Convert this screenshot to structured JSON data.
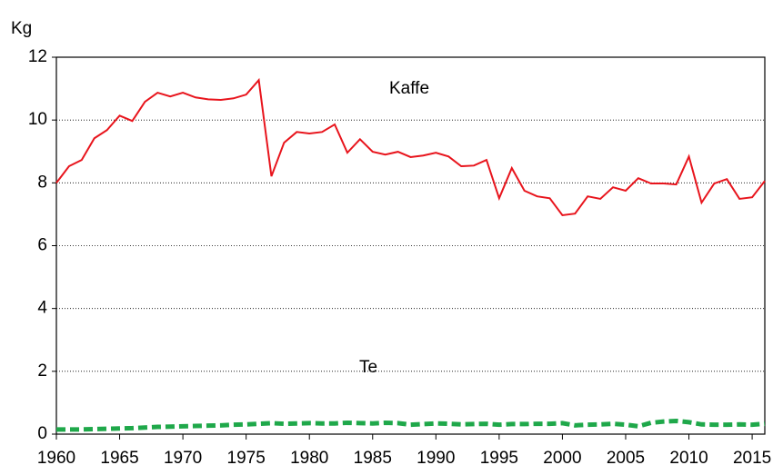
{
  "chart_data": {
    "type": "line",
    "y_label": "Kg",
    "annotations": [
      "Kaffe",
      "Te"
    ],
    "x": [
      1960,
      1961,
      1962,
      1963,
      1964,
      1965,
      1966,
      1967,
      1968,
      1969,
      1970,
      1971,
      1972,
      1973,
      1974,
      1975,
      1976,
      1977,
      1978,
      1979,
      1980,
      1981,
      1982,
      1983,
      1984,
      1985,
      1986,
      1987,
      1988,
      1989,
      1990,
      1991,
      1992,
      1993,
      1994,
      1995,
      1996,
      1997,
      1998,
      1999,
      2000,
      2001,
      2002,
      2003,
      2004,
      2005,
      2006,
      2007,
      2008,
      2009,
      2010,
      2011,
      2012,
      2013,
      2014,
      2015,
      2016
    ],
    "series": [
      {
        "name": "Kaffe",
        "color": "#e8141c",
        "dashed": false,
        "values": [
          8.0,
          8.53,
          8.73,
          9.42,
          9.68,
          10.14,
          9.97,
          10.58,
          10.87,
          10.75,
          10.87,
          10.72,
          10.66,
          10.64,
          10.69,
          10.81,
          11.27,
          8.21,
          9.28,
          9.62,
          9.57,
          9.62,
          9.86,
          8.96,
          9.39,
          8.99,
          8.9,
          8.99,
          8.82,
          8.87,
          8.96,
          8.84,
          8.53,
          8.55,
          8.73,
          7.51,
          8.47,
          7.75,
          7.57,
          7.51,
          6.97,
          7.02,
          7.57,
          7.49,
          7.86,
          7.75,
          8.15,
          7.98,
          7.98,
          7.95,
          8.84,
          7.37,
          7.98,
          8.12,
          7.49,
          7.54,
          8.06
        ]
      },
      {
        "name": "Te",
        "color": "#1fa84a",
        "dashed": true,
        "values": [
          0.15,
          0.15,
          0.15,
          0.16,
          0.17,
          0.18,
          0.19,
          0.21,
          0.23,
          0.24,
          0.25,
          0.26,
          0.27,
          0.28,
          0.3,
          0.31,
          0.33,
          0.35,
          0.33,
          0.34,
          0.35,
          0.34,
          0.34,
          0.36,
          0.35,
          0.34,
          0.36,
          0.35,
          0.3,
          0.32,
          0.34,
          0.33,
          0.31,
          0.32,
          0.33,
          0.3,
          0.32,
          0.32,
          0.33,
          0.33,
          0.35,
          0.28,
          0.3,
          0.31,
          0.33,
          0.3,
          0.25,
          0.36,
          0.4,
          0.42,
          0.38,
          0.31,
          0.3,
          0.3,
          0.31,
          0.3,
          0.33
        ]
      }
    ],
    "xlim": [
      1960,
      2016
    ],
    "xticks": [
      1960,
      1965,
      1970,
      1975,
      1980,
      1985,
      1990,
      1995,
      2000,
      2005,
      2010,
      2015
    ],
    "ylim": [
      0,
      12
    ],
    "yticks": [
      0,
      2,
      4,
      6,
      8,
      10,
      12
    ],
    "grid": true
  }
}
